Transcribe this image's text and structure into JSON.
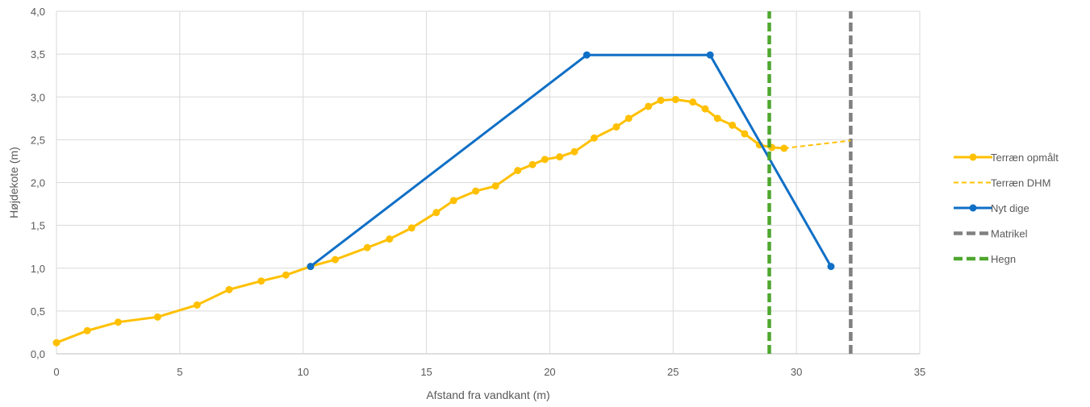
{
  "chart_data": {
    "type": "line",
    "xlabel": "Afstand fra vandkant (m)",
    "ylabel": "Højdekote (m)",
    "xlim": [
      0,
      35
    ],
    "ylim": [
      0,
      4.0
    ],
    "x_ticks": [
      0,
      5,
      10,
      15,
      20,
      25,
      30,
      35
    ],
    "y_ticks": [
      0,
      0.5,
      1.0,
      1.5,
      2.0,
      2.5,
      3.0,
      3.5,
      4.0
    ],
    "y_tick_labels": [
      "0,0",
      "0,5",
      "1,0",
      "1,5",
      "2,0",
      "2,5",
      "3,0",
      "3,5",
      "4,0"
    ],
    "grid": true,
    "legend_position": "right",
    "series": [
      {
        "name": "Terræn opmålt",
        "color": "#FFC000",
        "style": "solid-markers",
        "points": [
          [
            0,
            0.13
          ],
          [
            1.25,
            0.27
          ],
          [
            2.5,
            0.37
          ],
          [
            4.1,
            0.43
          ],
          [
            5.7,
            0.57
          ],
          [
            7.0,
            0.75
          ],
          [
            8.3,
            0.85
          ],
          [
            9.3,
            0.92
          ],
          [
            10.3,
            1.02
          ],
          [
            11.3,
            1.1
          ],
          [
            12.6,
            1.24
          ],
          [
            13.5,
            1.34
          ],
          [
            14.4,
            1.47
          ],
          [
            15.4,
            1.65
          ],
          [
            16.1,
            1.79
          ],
          [
            17.0,
            1.9
          ],
          [
            17.8,
            1.96
          ],
          [
            18.7,
            2.14
          ],
          [
            19.3,
            2.21
          ],
          [
            19.8,
            2.27
          ],
          [
            20.4,
            2.3
          ],
          [
            21.0,
            2.36
          ],
          [
            21.8,
            2.52
          ],
          [
            22.7,
            2.65
          ],
          [
            23.2,
            2.75
          ],
          [
            24.0,
            2.89
          ],
          [
            24.5,
            2.96
          ],
          [
            25.1,
            2.97
          ],
          [
            25.8,
            2.94
          ],
          [
            26.3,
            2.86
          ],
          [
            26.8,
            2.75
          ],
          [
            27.4,
            2.67
          ],
          [
            27.9,
            2.57
          ],
          [
            28.5,
            2.44
          ],
          [
            29.0,
            2.41
          ],
          [
            29.5,
            2.4
          ]
        ]
      },
      {
        "name": "Terræn DHM",
        "color": "#FFC000",
        "style": "dashed",
        "points": [
          [
            29.5,
            2.4
          ],
          [
            32.2,
            2.49
          ]
        ]
      },
      {
        "name": "Nyt dige",
        "color": "#0F6FC6",
        "style": "solid-markers",
        "points": [
          [
            10.3,
            1.02
          ],
          [
            21.5,
            3.49
          ],
          [
            26.5,
            3.49
          ],
          [
            31.4,
            1.02
          ]
        ]
      },
      {
        "name": "Matrikel",
        "color": "#808080",
        "style": "thick-dashed",
        "points": [
          [
            32.2,
            0
          ],
          [
            32.2,
            4.0
          ]
        ]
      },
      {
        "name": "Hegn",
        "color": "#4EA72E",
        "style": "thick-dashed",
        "points": [
          [
            28.9,
            0
          ],
          [
            28.9,
            4.0
          ]
        ]
      }
    ],
    "legend_order": [
      "Terræn opmålt",
      "Terræn DHM",
      "Nyt dige",
      "Matrikel",
      "Hegn"
    ],
    "draw_order": [
      "Matrikel",
      "Terræn DHM",
      "Terræn opmålt",
      "Nyt dige",
      "Hegn"
    ]
  }
}
